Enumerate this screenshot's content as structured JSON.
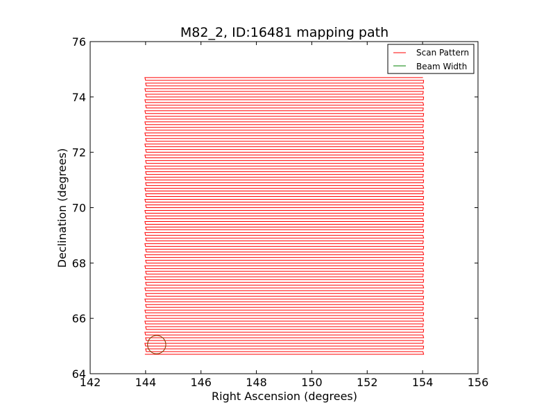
{
  "chart_data": {
    "type": "line",
    "title": "M82_2, ID:16481 mapping path",
    "xlabel": "Right Ascension (degrees)",
    "ylabel": "Declination (degrees)",
    "xlim": [
      142,
      156
    ],
    "ylim": [
      64,
      76
    ],
    "xticks": [
      142,
      144,
      146,
      148,
      150,
      152,
      154,
      156
    ],
    "yticks": [
      64,
      66,
      68,
      70,
      72,
      74,
      76
    ],
    "grid": false,
    "legend_position": "top-right",
    "series": [
      {
        "name": "Scan Pattern",
        "color": "#ff0000",
        "pattern": "raster",
        "ra_range": [
          144.0,
          154.0
        ],
        "dec_range": [
          64.7,
          74.7
        ],
        "row_spacing": 0.1
      },
      {
        "name": "Beam Width",
        "color": "#008000",
        "shape": "circle",
        "center": [
          144.4,
          65.05
        ],
        "radius": 0.33
      }
    ]
  }
}
